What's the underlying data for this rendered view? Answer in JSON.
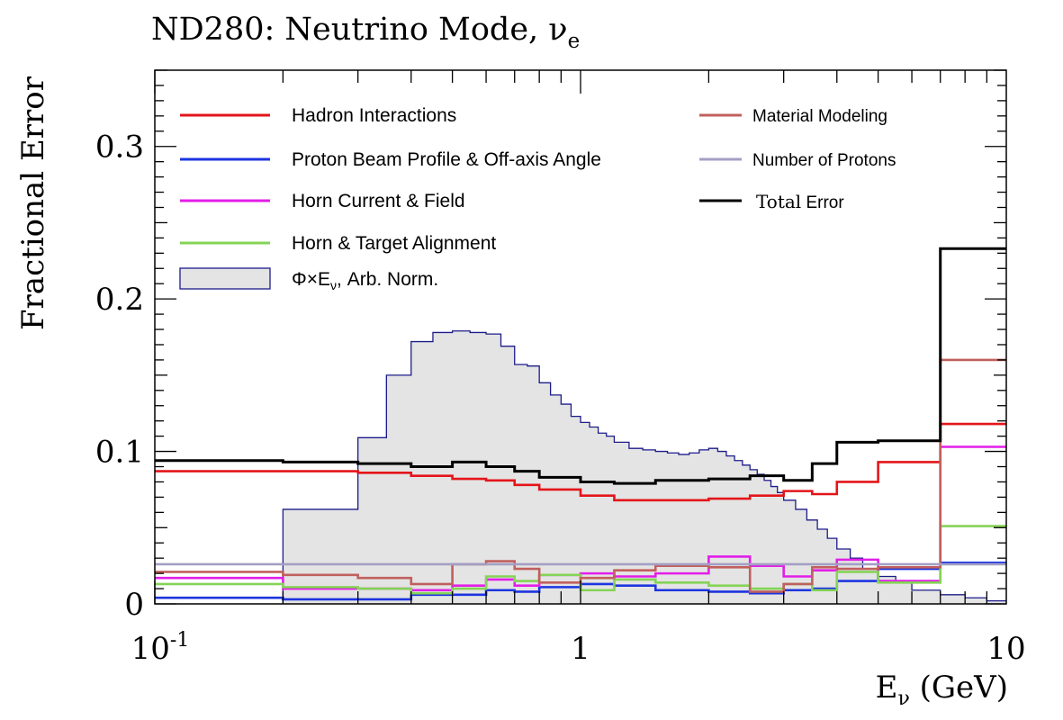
{
  "chart_data": {
    "type": "line",
    "title": "ND280: Neutrino Mode, ν",
    "title_subscript": "e",
    "xlabel": "E",
    "xlabel_subscript": "ν",
    "xlabel_unit": " (GeV)",
    "ylabel": "Fractional Error",
    "xscale": "log",
    "xlim": [
      0.1,
      10
    ],
    "ylim": [
      0,
      0.35
    ],
    "x_ticks": [
      {
        "value": 0.1,
        "label": "10",
        "sup": "-1"
      },
      {
        "value": 1,
        "label": "1",
        "sup": ""
      },
      {
        "value": 10,
        "label": "10",
        "sup": ""
      }
    ],
    "y_ticks": [
      {
        "value": 0,
        "label": "0"
      },
      {
        "value": 0.1,
        "label": "0.1"
      },
      {
        "value": 0.2,
        "label": "0.2"
      },
      {
        "value": 0.3,
        "label": "0.3"
      }
    ],
    "bin_edges": [
      0.1,
      0.2,
      0.3,
      0.4,
      0.5,
      0.6,
      0.7,
      0.8,
      1.0,
      1.2,
      1.5,
      2.0,
      2.5,
      3.0,
      3.5,
      4.0,
      5.0,
      7.0,
      10.0
    ],
    "series": [
      {
        "name": "Hadron Interactions",
        "color": "#e3151a",
        "values": [
          0.087,
          0.087,
          0.086,
          0.084,
          0.082,
          0.081,
          0.078,
          0.075,
          0.071,
          0.068,
          0.068,
          0.069,
          0.071,
          0.074,
          0.072,
          0.08,
          0.093,
          0.118
        ]
      },
      {
        "name": "Proton Beam Profile & Off-axis Angle",
        "color": "#1d35e0",
        "values": [
          0.004,
          0.003,
          0.003,
          0.006,
          0.006,
          0.009,
          0.008,
          0.011,
          0.013,
          0.012,
          0.009,
          0.008,
          0.007,
          0.009,
          0.01,
          0.015,
          0.023,
          0.027
        ]
      },
      {
        "name": "Horn Current & Field",
        "color": "#e21ee8",
        "values": [
          0.017,
          0.01,
          0.01,
          0.009,
          0.012,
          0.016,
          0.012,
          0.019,
          0.02,
          0.018,
          0.02,
          0.031,
          0.025,
          0.018,
          0.022,
          0.029,
          0.015,
          0.103
        ]
      },
      {
        "name": "Horn & Target Alignment",
        "color": "#85d357",
        "values": [
          0.013,
          0.011,
          0.01,
          0.007,
          0.01,
          0.018,
          0.015,
          0.019,
          0.009,
          0.016,
          0.014,
          0.012,
          0.01,
          0.013,
          0.009,
          0.021,
          0.014,
          0.051
        ]
      },
      {
        "name": "Material Modeling",
        "color": "#c0605e",
        "values": [
          0.021,
          0.019,
          0.017,
          0.013,
          0.026,
          0.028,
          0.023,
          0.014,
          0.017,
          0.022,
          0.025,
          0.024,
          0.008,
          0.013,
          0.024,
          0.023,
          0.024,
          0.16
        ]
      },
      {
        "name": "Number of Protons",
        "color": "#a39fc4",
        "values": [
          0.026,
          0.026,
          0.026,
          0.026,
          0.026,
          0.026,
          0.026,
          0.026,
          0.026,
          0.026,
          0.026,
          0.026,
          0.026,
          0.026,
          0.026,
          0.026,
          0.026,
          0.026
        ]
      },
      {
        "name": "Total Error",
        "color": "#000000",
        "values": [
          0.094,
          0.093,
          0.092,
          0.09,
          0.093,
          0.09,
          0.087,
          0.083,
          0.08,
          0.079,
          0.081,
          0.082,
          0.084,
          0.081,
          0.092,
          0.106,
          0.107,
          0.233
        ]
      }
    ],
    "flux_histogram": {
      "name": "Φ×E",
      "name_subscript": "ν",
      "name_suffix": ", Arb. Norm.",
      "fill_color": "#e4e4e4",
      "line_color": "#1c1c8a",
      "bin_edges": [
        0.2,
        0.3,
        0.35,
        0.4,
        0.45,
        0.5,
        0.55,
        0.6,
        0.65,
        0.7,
        0.75,
        0.8,
        0.85,
        0.9,
        0.95,
        1.0,
        1.05,
        1.1,
        1.15,
        1.2,
        1.3,
        1.4,
        1.5,
        1.6,
        1.7,
        1.8,
        1.9,
        2.0,
        2.1,
        2.2,
        2.3,
        2.4,
        2.5,
        2.6,
        2.7,
        2.8,
        2.9,
        3.0,
        3.2,
        3.4,
        3.6,
        3.8,
        4.0,
        4.3,
        4.6,
        5.0,
        5.5,
        6.0,
        7.0,
        8.0,
        9.0,
        10.0
      ],
      "values": [
        0.062,
        0.109,
        0.15,
        0.172,
        0.178,
        0.179,
        0.178,
        0.177,
        0.169,
        0.157,
        0.156,
        0.145,
        0.137,
        0.131,
        0.123,
        0.119,
        0.116,
        0.112,
        0.11,
        0.106,
        0.102,
        0.101,
        0.1,
        0.099,
        0.098,
        0.099,
        0.101,
        0.102,
        0.1,
        0.097,
        0.094,
        0.091,
        0.088,
        0.085,
        0.081,
        0.077,
        0.073,
        0.068,
        0.062,
        0.055,
        0.049,
        0.043,
        0.036,
        0.03,
        0.023,
        0.018,
        0.014,
        0.009,
        0.006,
        0.004,
        0.002
      ]
    },
    "legend": {
      "placement": "top",
      "left_column": [
        "Hadron Interactions",
        "Proton Beam Profile & Off-axis Angle",
        "Horn Current & Field",
        "Horn & Target Alignment"
      ],
      "right_column": [
        "Material Modeling",
        "Number of Protons",
        "Total Error"
      ],
      "total_error_label_a": "Total",
      "total_error_label_b": " Error"
    }
  }
}
